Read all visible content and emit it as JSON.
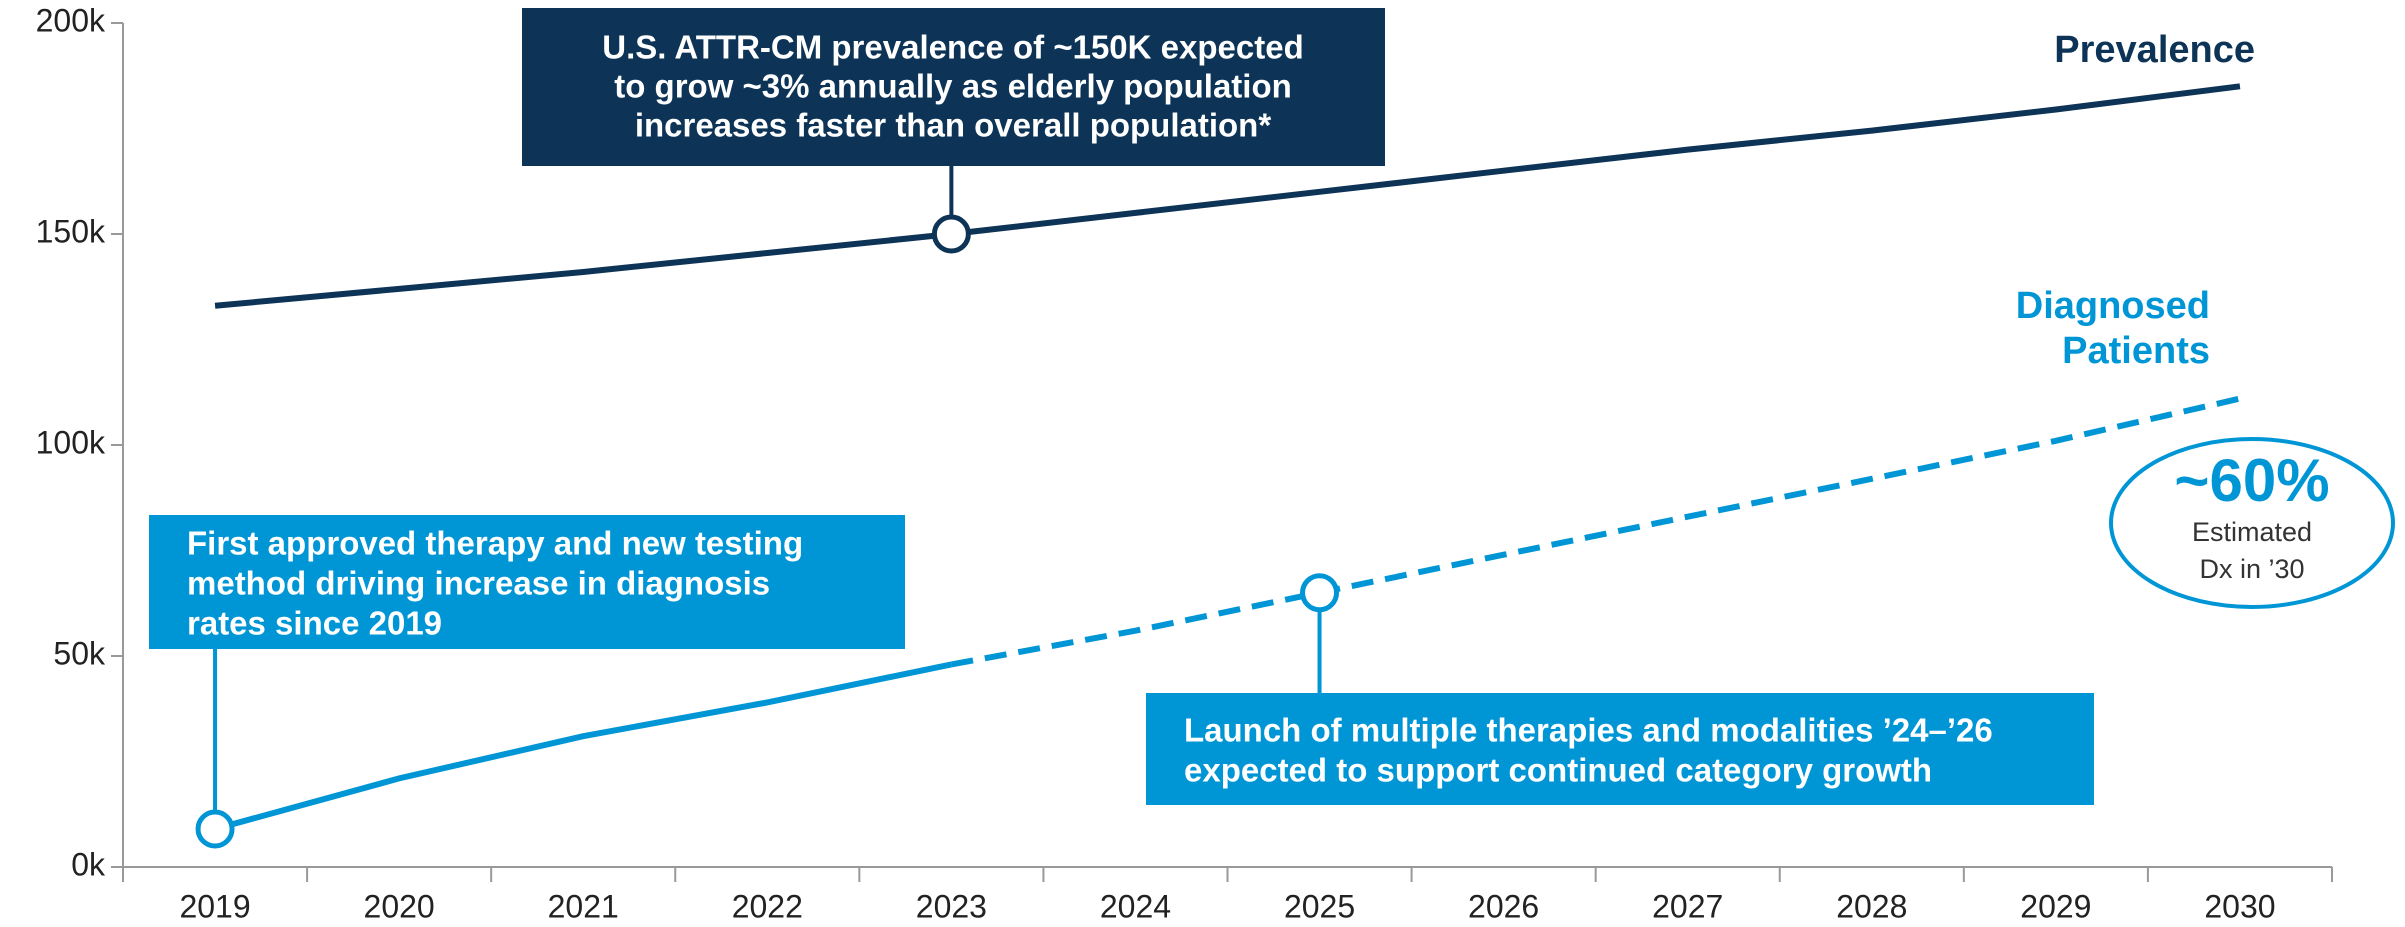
{
  "chart_data": {
    "type": "line",
    "categories": [
      "2019",
      "2020",
      "2021",
      "2022",
      "2023",
      "2024",
      "2025",
      "2026",
      "2027",
      "2028",
      "2029",
      "2030"
    ],
    "series": [
      {
        "name": "Prevalence",
        "color": "#0d3456",
        "values": [
          133000,
          137000,
          141000,
          145500,
          150000,
          155000,
          160000,
          165000,
          170000,
          174500,
          179500,
          185000
        ]
      },
      {
        "name": "Diagnosed Patients",
        "color": "#0096d6",
        "projection_start": "2023",
        "values": [
          9000,
          21000,
          31000,
          39000,
          48000,
          56000,
          65000,
          74000,
          83000,
          92000,
          101000,
          111000
        ]
      }
    ],
    "ylim": [
      0,
      200000
    ],
    "yticks": [
      {
        "value": 0,
        "label": "0k"
      },
      {
        "value": 50000,
        "label": "50k"
      },
      {
        "value": 100000,
        "label": "100k"
      },
      {
        "value": 150000,
        "label": "150k"
      },
      {
        "value": 200000,
        "label": "200k"
      }
    ],
    "annotations": [
      {
        "series": 0,
        "category": "2023",
        "lines": [
          "U.S. ATTR-CM prevalence of ~150K expected",
          "to grow ~3% annually as elderly population",
          "increases faster than overall population*"
        ]
      },
      {
        "series": 1,
        "category": "2019",
        "lines": [
          "First approved therapy and new testing",
          "method driving increase in diagnosis",
          "rates since 2019"
        ]
      },
      {
        "series": 1,
        "category": "2025",
        "lines": [
          "Launch of multiple therapies and modalities ’24–’26",
          "expected to support continued category growth"
        ]
      }
    ],
    "badge": {
      "value": 60,
      "label": "~60%",
      "lines": [
        "Estimated",
        "Dx in ’30"
      ]
    }
  }
}
